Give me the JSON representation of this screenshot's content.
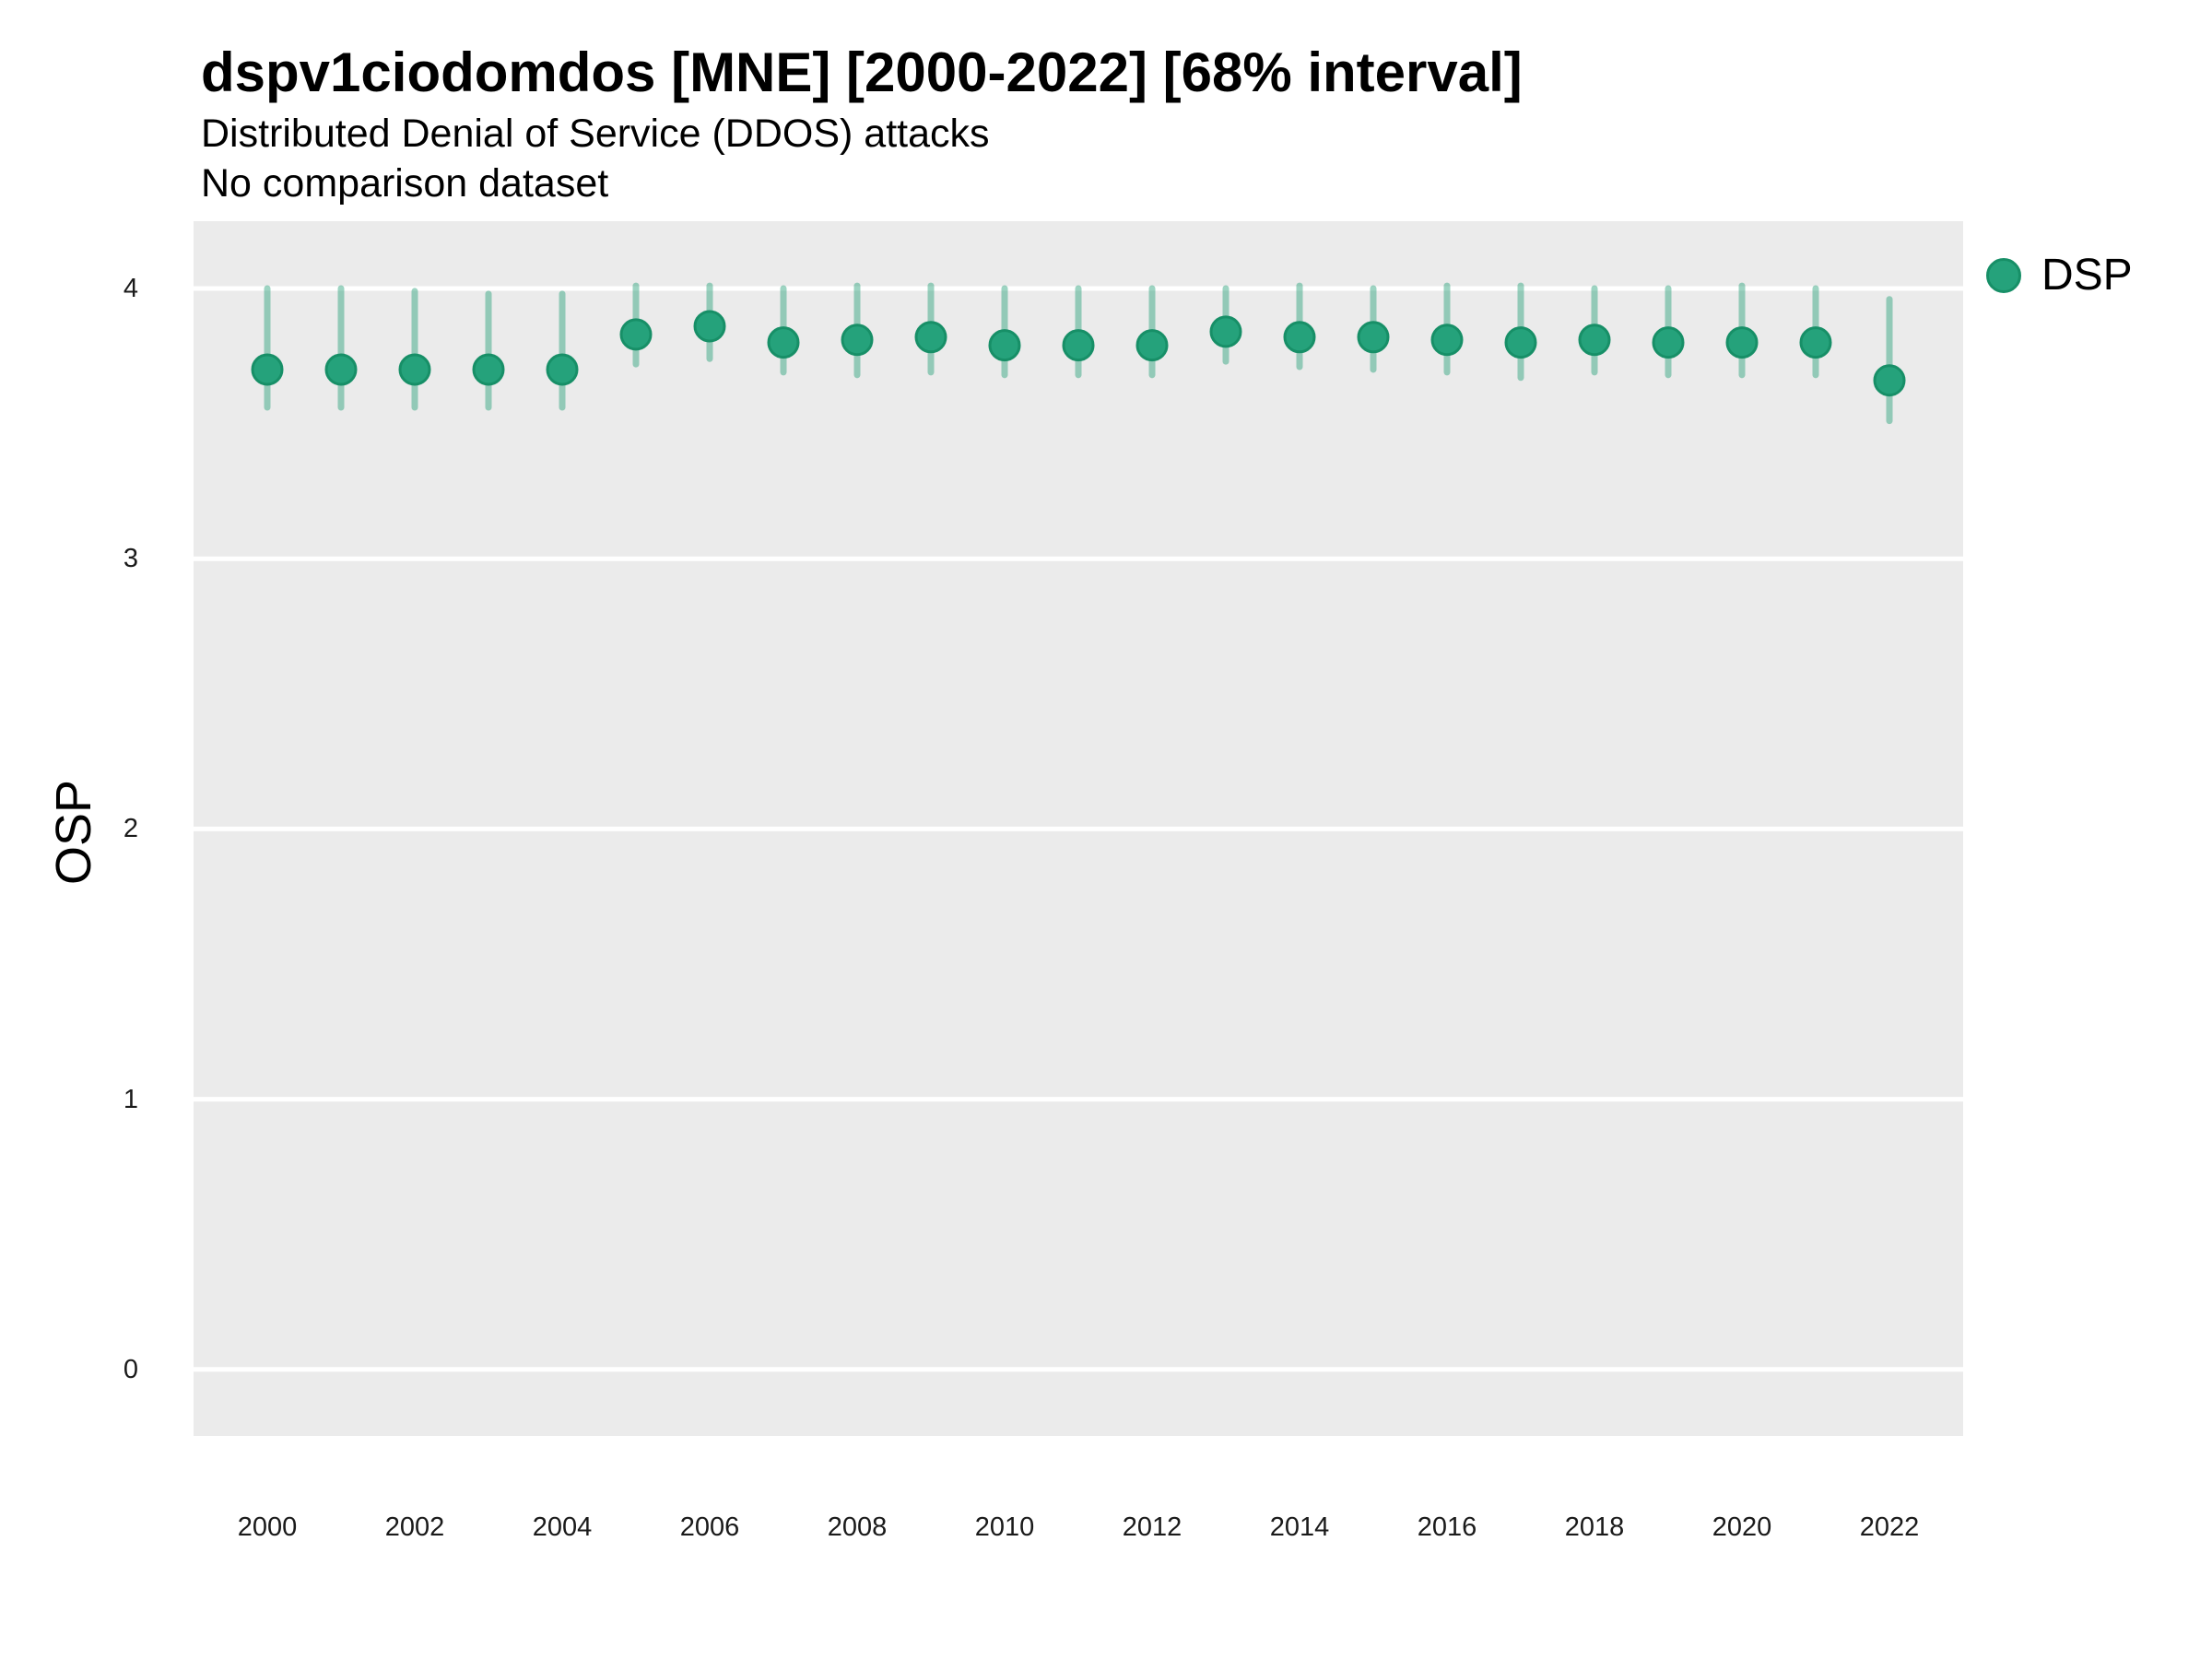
{
  "header": {
    "title": "dspv1ciodomdos [MNE] [2000-2022] [68% interval]",
    "subtitle_line1": "Distributed Denial of Service (DDOS) attacks",
    "subtitle_line2": "No comparison dataset"
  },
  "axes": {
    "y_title": "OSP",
    "y_tick_labels": [
      "4",
      "3",
      "2",
      "1",
      "0"
    ],
    "y_tick_values": [
      4,
      3,
      2,
      1,
      0
    ],
    "x_tick_labels": [
      "2000",
      "2002",
      "2004",
      "2006",
      "2008",
      "2010",
      "2012",
      "2014",
      "2016",
      "2018",
      "2020",
      "2022"
    ],
    "x_tick_values": [
      2000,
      2002,
      2004,
      2006,
      2008,
      2010,
      2012,
      2014,
      2016,
      2018,
      2020,
      2022
    ]
  },
  "legend": {
    "label": "DSP"
  },
  "colors": {
    "point_fill": "#25a27b",
    "point_stroke": "#178f67",
    "interval_line": "rgba(38,160,120,0.45)",
    "panel_background": "#ebebeb",
    "gridline": "#ffffff"
  },
  "chart_data": {
    "type": "scatter",
    "title": "dspv1ciodomdos [MNE] [2000-2022] [68% interval]",
    "subtitle": "Distributed Denial of Service (DDOS) attacks",
    "note": "No comparison dataset",
    "xlabel": "",
    "ylabel": "OSP",
    "ylim": [
      -0.25,
      4.25
    ],
    "y_axis_ticks": [
      0,
      1,
      2,
      3,
      4
    ],
    "x_axis_ticks": [
      2000,
      2002,
      2004,
      2006,
      2008,
      2010,
      2012,
      2014,
      2016,
      2018,
      2020,
      2022
    ],
    "grid": "major-horizontal-only",
    "legend_position": "right-top",
    "interval": "68%",
    "series": [
      {
        "name": "DSP",
        "x": [
          2000,
          2001,
          2002,
          2003,
          2004,
          2005,
          2006,
          2007,
          2008,
          2009,
          2010,
          2011,
          2012,
          2013,
          2014,
          2015,
          2016,
          2017,
          2018,
          2019,
          2020,
          2021,
          2022
        ],
        "y": [
          3.7,
          3.7,
          3.7,
          3.7,
          3.7,
          3.83,
          3.86,
          3.8,
          3.81,
          3.82,
          3.79,
          3.79,
          3.79,
          3.84,
          3.82,
          3.82,
          3.81,
          3.8,
          3.81,
          3.8,
          3.8,
          3.8,
          3.66
        ],
        "y_lo": [
          3.56,
          3.56,
          3.56,
          3.56,
          3.56,
          3.72,
          3.74,
          3.69,
          3.68,
          3.69,
          3.68,
          3.68,
          3.68,
          3.73,
          3.71,
          3.7,
          3.69,
          3.67,
          3.69,
          3.68,
          3.68,
          3.68,
          3.51
        ],
        "y_hi": [
          4.0,
          4.0,
          3.99,
          3.98,
          3.98,
          4.01,
          4.01,
          4.0,
          4.01,
          4.01,
          4.0,
          4.0,
          4.0,
          4.0,
          4.01,
          4.0,
          4.01,
          4.01,
          4.0,
          4.0,
          4.01,
          4.0,
          3.96
        ]
      }
    ]
  }
}
